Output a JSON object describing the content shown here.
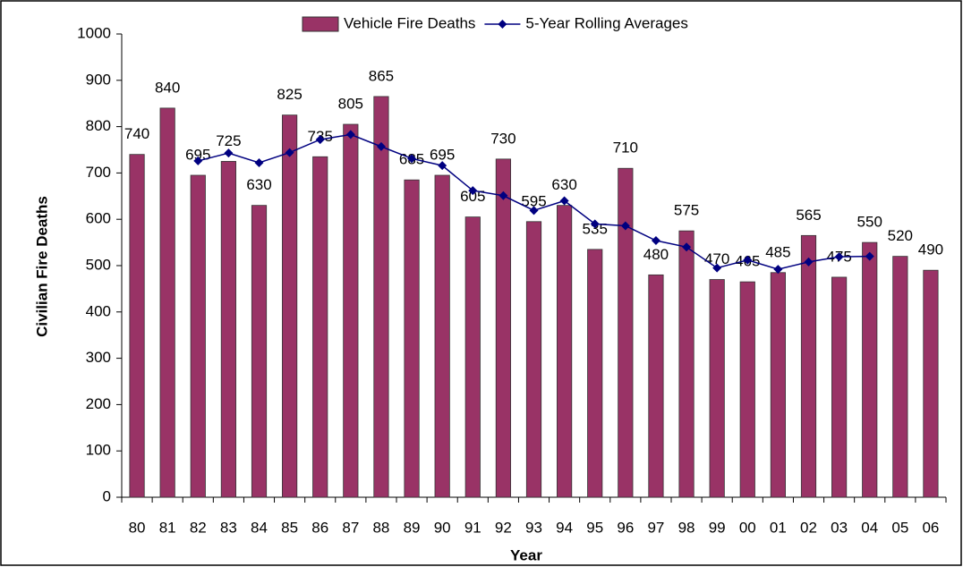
{
  "chart_data": {
    "type": "bar_line",
    "xlabel": "Year",
    "ylabel": "Civilian Fire Deaths",
    "categories": [
      "80",
      "81",
      "82",
      "83",
      "84",
      "85",
      "86",
      "87",
      "88",
      "89",
      "90",
      "91",
      "92",
      "93",
      "94",
      "95",
      "96",
      "97",
      "98",
      "99",
      "00",
      "01",
      "02",
      "03",
      "04",
      "05",
      "06"
    ],
    "series": [
      {
        "name": "Vehicle Fire Deaths",
        "type": "bar",
        "color": "#993366",
        "values": [
          740,
          840,
          695,
          725,
          630,
          825,
          735,
          805,
          865,
          685,
          695,
          605,
          730,
          595,
          630,
          535,
          710,
          480,
          575,
          470,
          465,
          485,
          565,
          475,
          550,
          520,
          490
        ]
      },
      {
        "name": "5-Year Rolling Averages",
        "type": "line",
        "color": "#000080",
        "values": [
          null,
          null,
          726,
          743,
          722,
          744,
          772,
          783,
          757,
          731,
          716,
          662,
          651,
          619,
          640,
          590,
          586,
          554,
          540,
          495,
          512,
          492,
          508,
          519,
          520,
          null,
          null
        ]
      }
    ],
    "ylim": [
      0,
      1000
    ],
    "yticks": [
      0,
      100,
      200,
      300,
      400,
      500,
      600,
      700,
      800,
      900,
      1000
    ],
    "legend": "top"
  }
}
